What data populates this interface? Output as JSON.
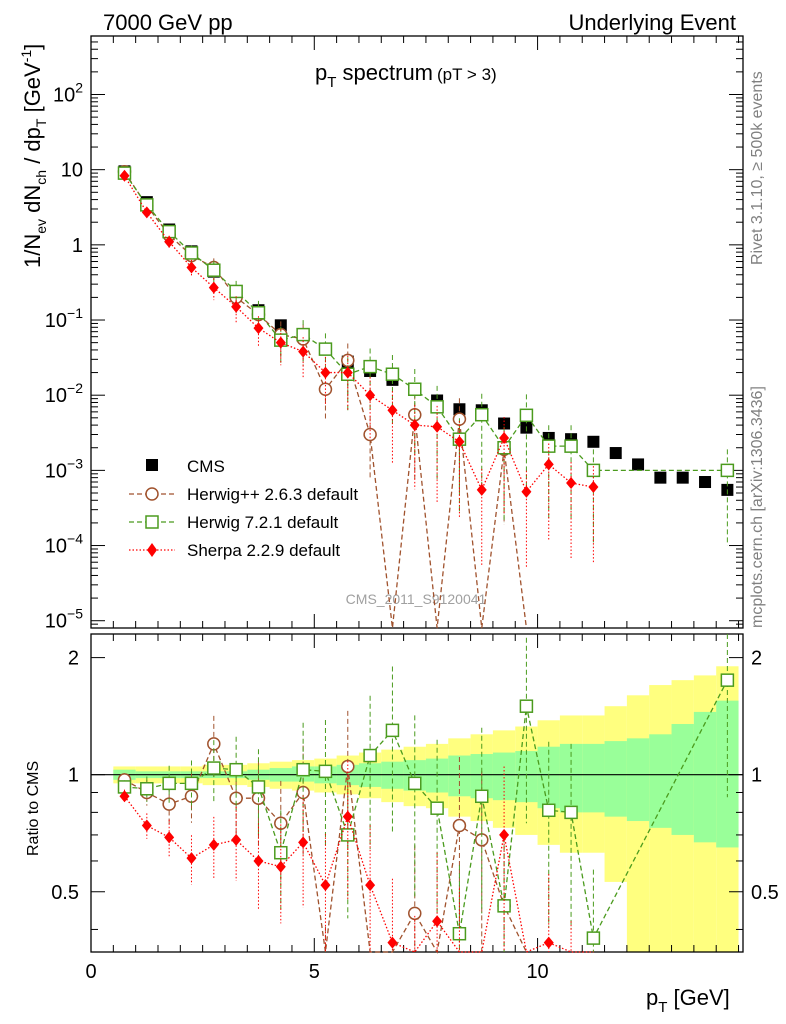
{
  "header": {
    "left": "7000 GeV pp",
    "right": "Underlying Event"
  },
  "side": {
    "rivet": "Rivet 3.1.10, ≥ 500k events",
    "mcplots": "mcplots.cern.ch [arXiv:1306.3436]"
  },
  "watermark": "CMS_2011_S9120041",
  "chart_data": {
    "type": "scatter",
    "title": "p_T spectrum",
    "title_main": "p",
    "title_sub": "T",
    "title_rest": " spectrum",
    "title_cut": "(pT >  3)",
    "ylabel": "1/N_ev dN_ch / dp_T [GeV^-1]",
    "xlabel": "p_T [GeV]",
    "ratio_ylabel": "Ratio to CMS",
    "xlim": [
      0,
      14.6
    ],
    "ylim": [
      8e-06,
      600
    ],
    "ratio_ylim": [
      0.35,
      2.3
    ],
    "xticks": [
      "0",
      "5",
      "10"
    ],
    "yticks": [
      "10^-5",
      "10^-4",
      "10^-3",
      "10^-2",
      "10^-1",
      "1",
      "10",
      "10^2"
    ],
    "ratio_yticks": [
      "0.5",
      "1",
      "2"
    ],
    "legend": [
      "CMS",
      "Herwig++ 2.6.3 default",
      "Herwig 7.2.1 default",
      "Sherpa 2.2.9 default"
    ],
    "series": [
      {
        "name": "CMS",
        "x": [
          0.75,
          1.25,
          1.75,
          2.25,
          2.75,
          3.25,
          3.75,
          4.25,
          4.75,
          5.25,
          5.75,
          6.25,
          6.75,
          7.25,
          7.75,
          8.25,
          8.75,
          9.25,
          9.75,
          10.25,
          10.75,
          11.25,
          11.75,
          12.25,
          12.75,
          13.25,
          13.75,
          14.25
        ],
        "values": [
          9.5,
          3.7,
          1.6,
          0.82,
          0.44,
          0.23,
          0.135,
          0.085,
          0.062,
          0.041,
          0.028,
          0.021,
          0.016,
          0.012,
          0.0085,
          0.0065,
          0.0063,
          0.0042,
          0.0037,
          0.0027,
          0.0026,
          0.0024,
          0.0017,
          0.0012,
          0.0008,
          0.0008,
          0.0007,
          0.00055
        ]
      },
      {
        "name": "Herwig++ 2.6.3 default",
        "x": [
          0.75,
          1.25,
          1.75,
          2.25,
          2.75,
          3.25,
          3.75,
          4.25,
          4.75,
          5.25,
          5.75,
          6.25,
          6.75,
          7.25,
          7.75,
          8.25,
          8.75,
          9.25,
          9.75
        ],
        "values": [
          9.4,
          3.3,
          1.35,
          0.72,
          0.5,
          0.2,
          0.118,
          0.064,
          0.056,
          0.012,
          0.029,
          0.003,
          4e-06,
          0.0055,
          4e-06,
          0.0048,
          4e-06,
          0.0019,
          4e-06
        ],
        "ratio": [
          0.97,
          0.9,
          0.84,
          0.88,
          1.2,
          0.87,
          0.87,
          0.75,
          0.9,
          0.3,
          1.05,
          0.14,
          0.05,
          0.44,
          0.05,
          0.74,
          0.68,
          0.46,
          0.05
        ]
      },
      {
        "name": "Herwig 7.2.1 default",
        "x": [
          0.75,
          1.25,
          1.75,
          2.25,
          2.75,
          3.25,
          3.75,
          4.25,
          4.75,
          5.25,
          5.75,
          6.25,
          6.75,
          7.25,
          7.75,
          8.25,
          8.75,
          9.25,
          9.75,
          10.25,
          10.75,
          11.25,
          14.25
        ],
        "values": [
          9.0,
          3.4,
          1.5,
          0.78,
          0.46,
          0.24,
          0.125,
          0.054,
          0.064,
          0.041,
          0.019,
          0.024,
          0.019,
          0.012,
          0.007,
          0.0026,
          0.0055,
          0.002,
          0.0054,
          0.0021,
          0.0021,
          0.001,
          0.001
        ],
        "ratio": [
          0.93,
          0.92,
          0.95,
          0.95,
          1.04,
          1.03,
          0.93,
          0.63,
          1.03,
          1.02,
          0.7,
          1.12,
          1.3,
          0.95,
          0.82,
          0.39,
          0.88,
          0.46,
          1.5,
          0.81,
          0.8,
          0.38,
          1.75
        ]
      },
      {
        "name": "Sherpa 2.2.9 default",
        "x": [
          0.75,
          1.25,
          1.75,
          2.25,
          2.75,
          3.25,
          3.75,
          4.25,
          4.75,
          5.25,
          5.75,
          6.25,
          6.75,
          7.25,
          7.75,
          8.25,
          8.75,
          9.25,
          9.75,
          10.25,
          10.75,
          11.25
        ],
        "values": [
          8.3,
          2.7,
          1.1,
          0.5,
          0.27,
          0.15,
          0.078,
          0.05,
          0.038,
          0.02,
          0.02,
          0.01,
          0.0063,
          0.004,
          0.0038,
          0.0024,
          0.00055,
          0.0027,
          0.00052,
          0.0012,
          0.00068,
          0.0006
        ],
        "ratio": [
          0.88,
          0.74,
          0.69,
          0.61,
          0.66,
          0.68,
          0.6,
          0.58,
          0.67,
          0.52,
          0.78,
          0.52,
          0.37,
          0.29,
          0.42,
          0.34,
          0.09,
          0.7,
          0.14,
          0.37,
          0.28,
          0.22
        ]
      }
    ],
    "band_x_edges": [
      0.5,
      1.0,
      1.5,
      2.0,
      2.5,
      3.0,
      3.5,
      4.0,
      4.5,
      5.0,
      5.5,
      6.0,
      6.5,
      7.0,
      7.5,
      8.0,
      8.5,
      9.0,
      9.5,
      10.0,
      10.5,
      11.0,
      11.5,
      12.0,
      12.5,
      13.0,
      13.5,
      14.0,
      14.5
    ],
    "band_stat_lo": [
      0.97,
      0.98,
      0.98,
      0.98,
      0.98,
      0.98,
      0.97,
      0.96,
      0.96,
      0.95,
      0.94,
      0.93,
      0.92,
      0.91,
      0.9,
      0.88,
      0.87,
      0.86,
      0.85,
      0.82,
      0.8,
      0.8,
      0.78,
      0.76,
      0.73,
      0.7,
      0.67,
      0.65
    ],
    "band_stat_hi": [
      1.03,
      1.02,
      1.02,
      1.02,
      1.02,
      1.02,
      1.03,
      1.04,
      1.05,
      1.05,
      1.06,
      1.07,
      1.08,
      1.09,
      1.1,
      1.12,
      1.13,
      1.14,
      1.15,
      1.18,
      1.2,
      1.2,
      1.22,
      1.24,
      1.27,
      1.35,
      1.45,
      1.55
    ],
    "band_tot_lo": [
      0.95,
      0.95,
      0.95,
      0.95,
      0.94,
      0.94,
      0.93,
      0.92,
      0.91,
      0.9,
      0.89,
      0.87,
      0.85,
      0.83,
      0.82,
      0.78,
      0.76,
      0.73,
      0.7,
      0.66,
      0.63,
      0.63,
      0.53,
      0.35,
      0.35,
      0.35,
      0.35,
      0.35
    ],
    "band_tot_hi": [
      1.05,
      1.05,
      1.05,
      1.05,
      1.06,
      1.06,
      1.07,
      1.08,
      1.09,
      1.1,
      1.12,
      1.14,
      1.16,
      1.18,
      1.2,
      1.24,
      1.27,
      1.3,
      1.33,
      1.38,
      1.42,
      1.42,
      1.5,
      1.6,
      1.7,
      1.75,
      1.8,
      1.9
    ]
  }
}
